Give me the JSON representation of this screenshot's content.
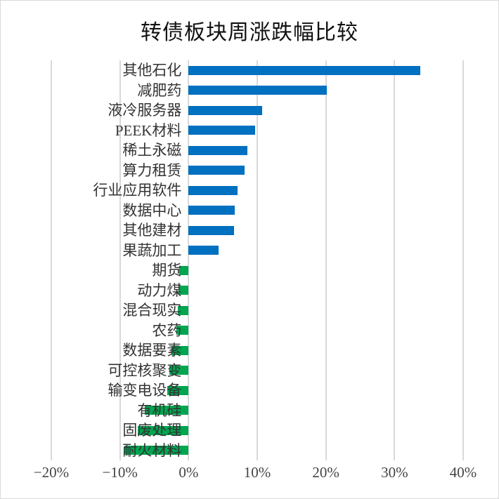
{
  "chart_data": {
    "type": "bar",
    "orientation": "horizontal",
    "title": "转债板块周涨跌幅比较",
    "categories": [
      "其他石化",
      "减肥药",
      "液冷服务器",
      "PEEK材料",
      "稀土永磁",
      "算力租赁",
      "行业应用软件",
      "数据中心",
      "其他建材",
      "果蔬加工",
      "期货",
      "动力煤",
      "混合现实",
      "农药",
      "数据要素",
      "可控核聚变",
      "输变电设备",
      "有机硅",
      "固废处理",
      "耐火材料"
    ],
    "values": [
      33.8,
      20.1,
      10.7,
      9.7,
      8.6,
      8.2,
      7.1,
      6.7,
      6.6,
      4.4,
      -1.4,
      -1.5,
      -1.6,
      -1.8,
      -2.5,
      -2.8,
      -3.1,
      -6.4,
      -7.4,
      -9.4
    ],
    "value_unit": "%",
    "xlabel": "",
    "ylabel": "",
    "xlim": [
      -20,
      40
    ],
    "x_tick_values": [
      -20,
      -10,
      0,
      10,
      20,
      30,
      40
    ],
    "x_tick_labels": [
      "−20%",
      "−10%",
      "0%",
      "10%",
      "20%",
      "30%",
      "40%"
    ],
    "grid": "vertical-only",
    "legend": "none",
    "colors": {
      "positive_bar": "#0070C0",
      "negative_bar": "#00A550",
      "gridline": "#d9d9d9",
      "title_text": "#111111",
      "label_text": "#333333",
      "tick_text": "#444444",
      "background": "#ffffff"
    }
  }
}
